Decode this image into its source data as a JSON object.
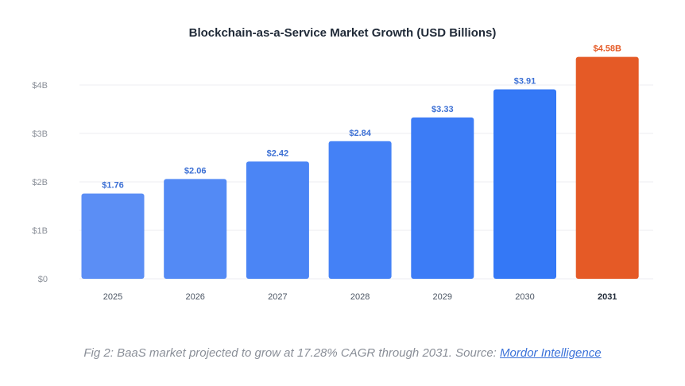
{
  "chart_data": {
    "type": "bar",
    "title": "Blockchain-as-a-Service Market Growth (USD Billions)",
    "xlabel": "",
    "ylabel": "",
    "categories": [
      "2025",
      "2026",
      "2027",
      "2028",
      "2029",
      "2030",
      "2031"
    ],
    "values": [
      1.76,
      2.06,
      2.42,
      2.84,
      3.33,
      3.91,
      4.58
    ],
    "data_labels": [
      "$1.76",
      "$2.06",
      "$2.42",
      "$2.84",
      "$3.33",
      "$3.91",
      "$4.58B"
    ],
    "highlight_category": "2031",
    "ylim": [
      0,
      4
    ],
    "y_ticks": [
      0,
      1,
      2,
      3,
      4
    ],
    "y_tick_labels": [
      "$0",
      "$1B",
      "$2B",
      "$3B",
      "$4B"
    ],
    "grid": true,
    "legend": "none",
    "colors": {
      "bar_start": "#5b8ef5",
      "bar_end": "#3478f6",
      "highlight": "#e55a26",
      "label": "#3b6fd4"
    }
  },
  "caption": {
    "text": "Fig 2: BaaS market projected to grow at 17.28% CAGR through 2031. Source: ",
    "link_text": "Mordor Intelligence"
  }
}
